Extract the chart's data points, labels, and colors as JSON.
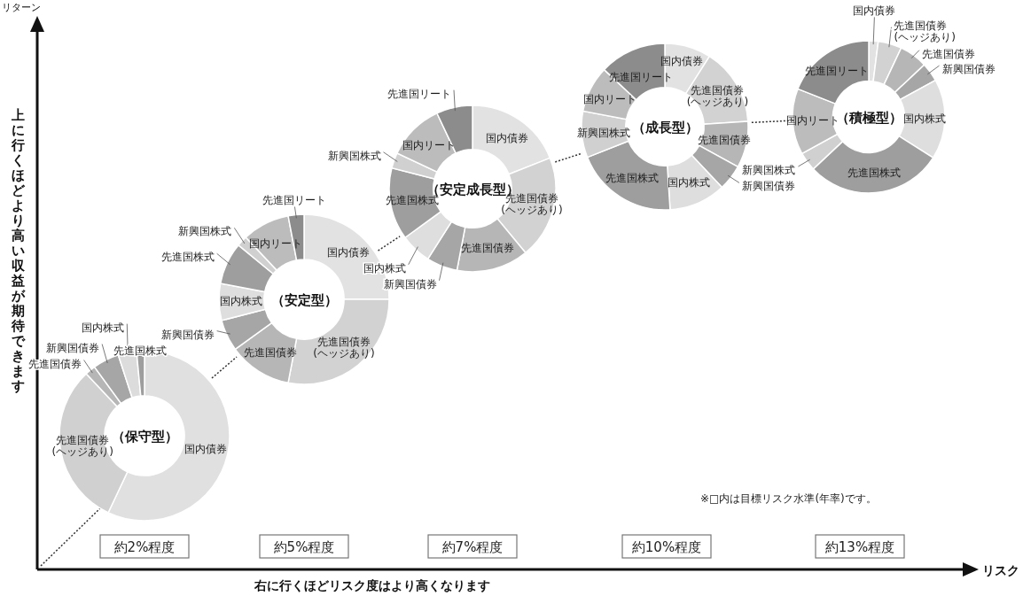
{
  "chart_data": [
    {
      "type": "other",
      "ylabel": "上に行くほどより高い収益が期待できます",
      "xlabel": "右に行くほどリスク度はより高くなります",
      "annotations": [
        "リターン",
        "リスク",
        "※□内は目標リスク水準(年率)です。"
      ]
    },
    {
      "type": "donut",
      "title": "（保守型）",
      "subtitle": "約2%程度",
      "categories": [
        "国内債券",
        "先進国債券(ヘッジあり)",
        "先進国債券",
        "新興国債券",
        "国内株式",
        "先進国株式"
      ],
      "values": [
        57,
        31,
        2,
        5,
        3.5,
        1.5
      ],
      "colors": [
        "#e0e0e0",
        "#d0d0d0",
        "#b6b6b6",
        "#a6a6a6",
        "#dcdcdc",
        "#9e9e9e"
      ]
    },
    {
      "type": "donut",
      "title": "（安定型）",
      "subtitle": "約5%程度",
      "categories": [
        "国内債券",
        "先進国債券(ヘッジあり)",
        "先進国債券",
        "新興国債券",
        "国内株式",
        "先進国株式",
        "新興国株式",
        "国内リート",
        "先進国リート"
      ],
      "values": [
        25,
        28,
        12,
        6,
        7,
        8,
        2,
        9,
        3
      ],
      "colors": [
        "#e2e2e2",
        "#d2d2d2",
        "#b6b6b6",
        "#a6a6a6",
        "#dedede",
        "#9e9e9e",
        "#d0d0d0",
        "#bcbcbc",
        "#8c8c8c"
      ]
    },
    {
      "type": "donut",
      "title": "（安定成長型）",
      "subtitle": "約7%程度",
      "categories": [
        "国内債券",
        "先進国債券(ヘッジあり)",
        "先進国債券",
        "新興国債券",
        "国内株式",
        "先進国株式",
        "新興国株式",
        "国内リート",
        "先進国リート"
      ],
      "values": [
        19,
        20,
        14,
        6,
        6,
        14,
        3,
        11,
        7
      ],
      "colors": [
        "#e2e2e2",
        "#d2d2d2",
        "#b6b6b6",
        "#a6a6a6",
        "#dedede",
        "#9e9e9e",
        "#d0d0d0",
        "#bcbcbc",
        "#8c8c8c"
      ]
    },
    {
      "type": "donut",
      "title": "（成長型）",
      "subtitle": "約10%程度",
      "categories": [
        "国内債券",
        "先進国債券(ヘッジあり)",
        "先進国債券",
        "新興国債券",
        "国内株式",
        "先進国株式",
        "新興国株式",
        "国内リート",
        "先進国リート"
      ],
      "values": [
        9,
        15,
        9,
        5,
        11,
        20,
        9,
        9,
        13
      ],
      "colors": [
        "#e2e2e2",
        "#d2d2d2",
        "#b6b6b6",
        "#a6a6a6",
        "#dedede",
        "#9e9e9e",
        "#d0d0d0",
        "#bcbcbc",
        "#8c8c8c"
      ]
    },
    {
      "type": "donut",
      "title": "（積極型）",
      "subtitle": "約13%程度",
      "categories": [
        "国内債券",
        "先進国債券(ヘッジあり)",
        "先進国債券",
        "新興国債券",
        "国内株式",
        "先進国株式",
        "新興国株式",
        "国内リート",
        "先進国リート"
      ],
      "values": [
        2,
        5,
        6,
        4,
        17,
        29,
        4,
        14,
        19
      ],
      "colors": [
        "#e2e2e2",
        "#d2d2d2",
        "#b6b6b6",
        "#a6a6a6",
        "#dedede",
        "#9e9e9e",
        "#d0d0d0",
        "#bcbcbc",
        "#8c8c8c"
      ]
    }
  ]
}
